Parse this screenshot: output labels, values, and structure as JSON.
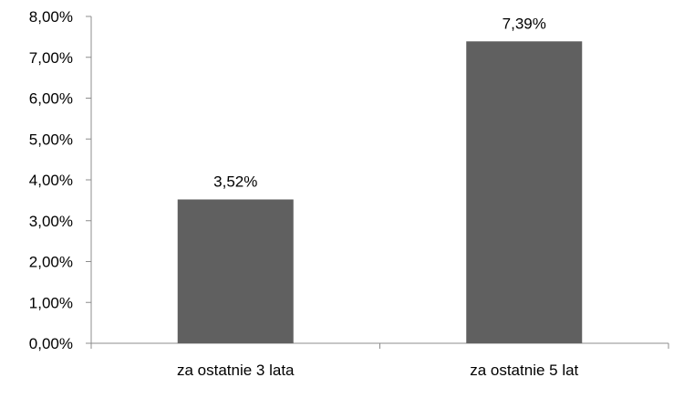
{
  "chart_data": {
    "type": "bar",
    "title": "",
    "xlabel": "",
    "ylabel": "",
    "categories": [
      "za ostatnie 3 lata",
      "za ostatnie 5 lat"
    ],
    "values": [
      3.52,
      7.39
    ],
    "data_labels": [
      "3,52%",
      "7,39%"
    ],
    "ylim": [
      0,
      8
    ],
    "y_ticks": [
      0,
      1,
      2,
      3,
      4,
      5,
      6,
      7,
      8
    ],
    "y_tick_labels": [
      "0,00%",
      "1,00%",
      "2,00%",
      "3,00%",
      "4,00%",
      "5,00%",
      "6,00%",
      "7,00%",
      "8,00%"
    ],
    "grid": false,
    "legend": "none",
    "bar_color": "#606060",
    "axis_color": "#8c8c8c"
  }
}
